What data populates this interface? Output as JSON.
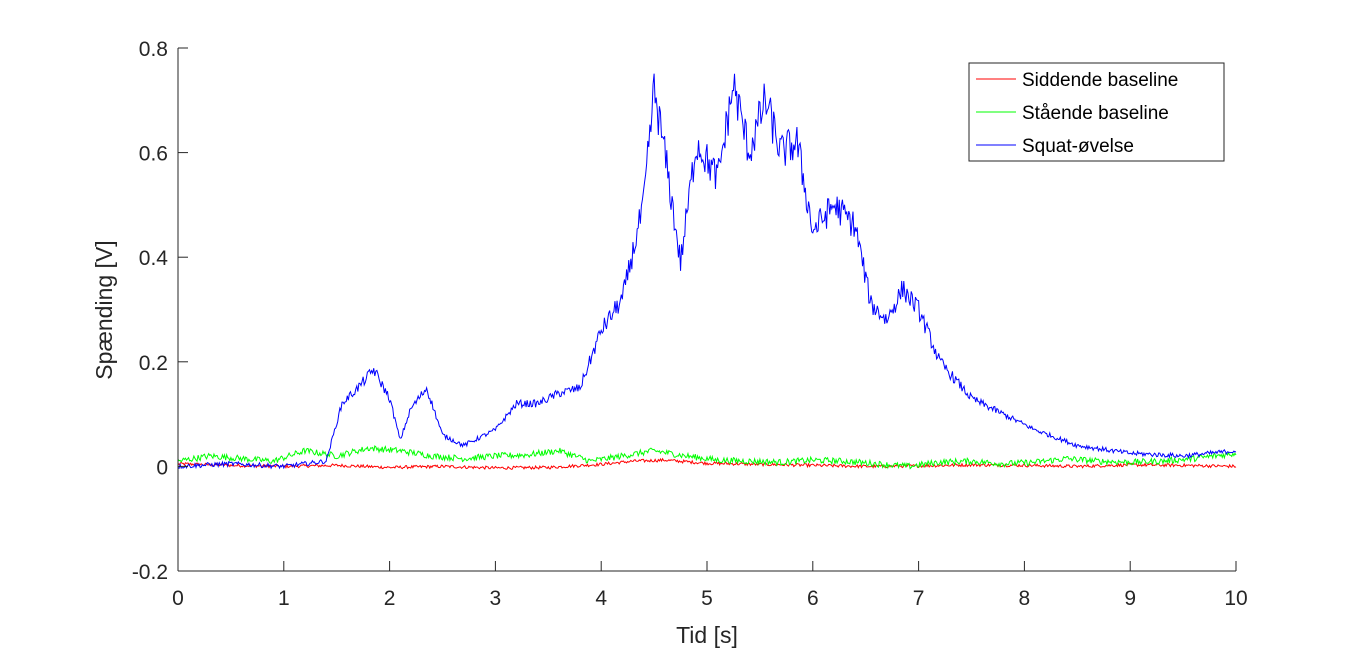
{
  "chart_data": {
    "type": "line",
    "xlabel": "Tid [s]",
    "ylabel": "Spænding [V]",
    "xlim": [
      0,
      10
    ],
    "ylim": [
      -0.2,
      0.8
    ],
    "x_ticks": [
      "0",
      "1",
      "2",
      "3",
      "4",
      "5",
      "6",
      "7",
      "8",
      "9",
      "10"
    ],
    "y_ticks": [
      "-0.2",
      "0",
      "0.2",
      "0.4",
      "0.6",
      "0.8"
    ],
    "grid": false,
    "legend_position": "top-right",
    "series": [
      {
        "name": "Siddende baseline",
        "color": "#ff0000",
        "x": [
          0,
          0.5,
          1.0,
          1.5,
          2.0,
          2.5,
          3.0,
          3.5,
          4.0,
          4.3,
          4.6,
          5.0,
          5.5,
          6.0,
          6.5,
          7.0,
          7.5,
          8.0,
          8.5,
          9.0,
          9.5,
          10.0
        ],
        "y": [
          0.005,
          0.002,
          0.0,
          0.002,
          -0.002,
          0.0,
          -0.003,
          -0.002,
          0.004,
          0.01,
          0.012,
          0.006,
          0.004,
          0.002,
          0.0,
          0.001,
          0.003,
          0.002,
          0.0,
          0.003,
          0.002,
          0.0
        ]
      },
      {
        "name": "Stående baseline",
        "color": "#00ff00",
        "x": [
          0,
          0.3,
          0.6,
          0.9,
          1.2,
          1.5,
          1.8,
          2.1,
          2.4,
          2.7,
          3.0,
          3.3,
          3.6,
          3.9,
          4.2,
          4.5,
          4.8,
          5.1,
          5.4,
          5.7,
          6.0,
          6.3,
          6.6,
          6.9,
          7.2,
          7.5,
          7.8,
          8.1,
          8.4,
          8.7,
          9.0,
          9.3,
          9.6,
          10.0
        ],
        "y": [
          0.01,
          0.02,
          0.015,
          0.01,
          0.03,
          0.02,
          0.035,
          0.03,
          0.02,
          0.015,
          0.02,
          0.022,
          0.03,
          0.01,
          0.02,
          0.03,
          0.02,
          0.012,
          0.01,
          0.008,
          0.012,
          0.01,
          0.005,
          0.0,
          0.008,
          0.01,
          0.005,
          0.008,
          0.015,
          0.01,
          0.008,
          0.01,
          0.015,
          0.025
        ]
      },
      {
        "name": "Squat-øvelse",
        "color": "#0000ff",
        "x": [
          0,
          0.5,
          1.0,
          1.4,
          1.55,
          1.7,
          1.85,
          2.0,
          2.1,
          2.2,
          2.35,
          2.5,
          2.7,
          3.0,
          3.2,
          3.4,
          3.6,
          3.8,
          4.0,
          4.2,
          4.4,
          4.5,
          4.6,
          4.75,
          4.9,
          5.1,
          5.25,
          5.4,
          5.55,
          5.7,
          5.85,
          6.0,
          6.2,
          6.4,
          6.55,
          6.7,
          6.85,
          7.0,
          7.2,
          7.5,
          7.8,
          8.1,
          8.5,
          9.0,
          9.5,
          10.0
        ],
        "y": [
          0.0,
          0.005,
          0.0,
          0.01,
          0.12,
          0.15,
          0.185,
          0.13,
          0.05,
          0.11,
          0.15,
          0.06,
          0.04,
          0.07,
          0.12,
          0.12,
          0.14,
          0.15,
          0.26,
          0.32,
          0.5,
          0.72,
          0.6,
          0.39,
          0.62,
          0.55,
          0.73,
          0.6,
          0.7,
          0.6,
          0.62,
          0.45,
          0.5,
          0.46,
          0.31,
          0.28,
          0.34,
          0.3,
          0.2,
          0.13,
          0.1,
          0.07,
          0.04,
          0.025,
          0.02,
          0.03
        ]
      }
    ]
  }
}
